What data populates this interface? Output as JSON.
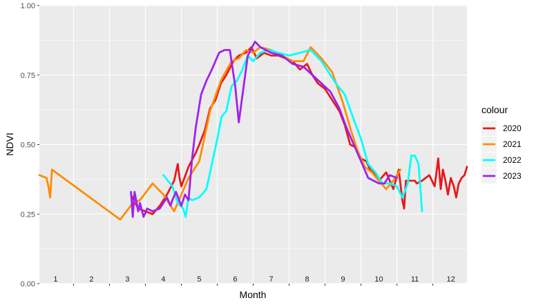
{
  "chart_data": {
    "type": "line",
    "xlabel": "Month",
    "ylabel": "NDVI",
    "ylim": [
      0,
      1
    ],
    "xlim": [
      0.55,
      12.45
    ],
    "y_ticks": [
      "0.00",
      "0.25",
      "0.50",
      "0.75",
      "1.00"
    ],
    "y_tick_values": [
      0,
      0.25,
      0.5,
      0.75,
      1.0
    ],
    "x_tick_labels": [
      "1",
      "2",
      "3",
      "4",
      "5",
      "6",
      "7",
      "8",
      "9",
      "10",
      "11",
      "12"
    ],
    "grid": true,
    "legend_position": "right",
    "legend_title": "colour",
    "series": [
      {
        "name": "2020",
        "color": "#e41a1c",
        "x": [
          3.1,
          3.3,
          3.5,
          3.7,
          3.9,
          4.1,
          4.3,
          4.4,
          4.45,
          4.5,
          4.7,
          4.9,
          5.0,
          5.15,
          5.3,
          5.45,
          5.6,
          5.75,
          5.95,
          6.1,
          6.3,
          6.45,
          6.6,
          6.8,
          7.0,
          7.2,
          7.4,
          7.6,
          7.8,
          8.0,
          8.15,
          8.3,
          8.5,
          8.7,
          8.9,
          9.05,
          9.2,
          9.35,
          9.5,
          9.65,
          9.75,
          9.85,
          10.0,
          10.2,
          10.4,
          10.55,
          10.65,
          10.7,
          10.75,
          10.9,
          11.0,
          11.05,
          11.2,
          11.4,
          11.55,
          11.65,
          11.72,
          11.78,
          11.85,
          11.92,
          12.0,
          12.08,
          12.15,
          12.22,
          12.3,
          12.38,
          12.45
        ],
        "y": [
          0.32,
          0.27,
          0.26,
          0.25,
          0.28,
          0.32,
          0.37,
          0.43,
          0.38,
          0.35,
          0.42,
          0.47,
          0.5,
          0.55,
          0.63,
          0.66,
          0.72,
          0.75,
          0.8,
          0.82,
          0.83,
          0.85,
          0.81,
          0.83,
          0.82,
          0.82,
          0.81,
          0.8,
          0.77,
          0.79,
          0.75,
          0.72,
          0.7,
          0.66,
          0.62,
          0.57,
          0.5,
          0.49,
          0.45,
          0.44,
          0.41,
          0.4,
          0.37,
          0.4,
          0.34,
          0.41,
          0.3,
          0.27,
          0.37,
          0.37,
          0.37,
          0.36,
          0.37,
          0.39,
          0.35,
          0.45,
          0.34,
          0.41,
          0.37,
          0.32,
          0.38,
          0.35,
          0.31,
          0.36,
          0.38,
          0.39,
          0.42
        ]
      },
      {
        "name": "2021",
        "color": "#ff8c00",
        "x": [
          0.55,
          0.75,
          0.8,
          0.85,
          0.9,
          2.8,
          3.15,
          3.35,
          3.7,
          4.0,
          4.3,
          4.5,
          4.7,
          5.0,
          5.3,
          5.6,
          5.9,
          6.1,
          6.3,
          6.5,
          6.7,
          7.0,
          7.3,
          7.6,
          7.9,
          8.1,
          8.4,
          8.7,
          9.0,
          9.2,
          9.4,
          9.6,
          9.8,
          10.0,
          10.2,
          10.4,
          10.6
        ],
        "y": [
          0.39,
          0.38,
          0.35,
          0.31,
          0.41,
          0.23,
          0.29,
          0.3,
          0.36,
          0.32,
          0.26,
          0.32,
          0.38,
          0.44,
          0.62,
          0.73,
          0.8,
          0.81,
          0.84,
          0.83,
          0.85,
          0.84,
          0.82,
          0.8,
          0.8,
          0.85,
          0.81,
          0.76,
          0.65,
          0.56,
          0.48,
          0.42,
          0.4,
          0.37,
          0.34,
          0.37,
          0.41
        ]
      },
      {
        "name": "2022",
        "color": "#00ffff",
        "x": [
          4.0,
          4.25,
          4.4,
          4.55,
          4.62,
          4.7,
          4.8,
          5.0,
          5.2,
          5.35,
          5.5,
          5.62,
          5.75,
          5.9,
          6.05,
          6.2,
          6.35,
          6.5,
          6.7,
          6.95,
          7.2,
          7.5,
          7.8,
          8.1,
          8.4,
          8.6,
          8.8,
          9.05,
          9.3,
          9.5,
          9.7,
          9.9,
          10.1,
          10.3,
          10.5,
          10.65,
          10.72,
          10.8,
          10.9,
          11.0,
          11.1,
          11.2
        ],
        "y": [
          0.39,
          0.35,
          0.29,
          0.27,
          0.24,
          0.31,
          0.3,
          0.31,
          0.34,
          0.43,
          0.52,
          0.6,
          0.62,
          0.71,
          0.73,
          0.77,
          0.82,
          0.8,
          0.83,
          0.84,
          0.83,
          0.82,
          0.83,
          0.84,
          0.8,
          0.76,
          0.72,
          0.68,
          0.59,
          0.52,
          0.43,
          0.4,
          0.36,
          0.36,
          0.35,
          0.31,
          0.33,
          0.36,
          0.46,
          0.46,
          0.43,
          0.26
        ]
      },
      {
        "name": "2023",
        "color": "#a020f0",
        "x": [
          3.1,
          3.15,
          3.2,
          3.3,
          3.35,
          3.45,
          3.55,
          3.7,
          3.9,
          4.1,
          4.2,
          4.25,
          4.35,
          4.5,
          4.6,
          4.7,
          4.8,
          4.9,
          5.05,
          5.2,
          5.35,
          5.55,
          5.7,
          5.85,
          6.0,
          6.1,
          6.35,
          6.55,
          6.7,
          6.85,
          7.0,
          7.3,
          7.6,
          7.9,
          8.15,
          8.4,
          8.65,
          8.9,
          9.1,
          9.3,
          9.5,
          9.7,
          9.85,
          10.0,
          10.15,
          10.3,
          10.5
        ],
        "y": [
          0.33,
          0.24,
          0.33,
          0.26,
          0.29,
          0.24,
          0.27,
          0.26,
          0.27,
          0.31,
          0.28,
          0.3,
          0.33,
          0.28,
          0.32,
          0.3,
          0.45,
          0.56,
          0.68,
          0.73,
          0.77,
          0.83,
          0.84,
          0.84,
          0.71,
          0.58,
          0.82,
          0.87,
          0.85,
          0.84,
          0.83,
          0.82,
          0.79,
          0.78,
          0.75,
          0.72,
          0.69,
          0.63,
          0.56,
          0.5,
          0.44,
          0.38,
          0.37,
          0.36,
          0.36,
          0.39,
          0.38
        ]
      }
    ]
  }
}
